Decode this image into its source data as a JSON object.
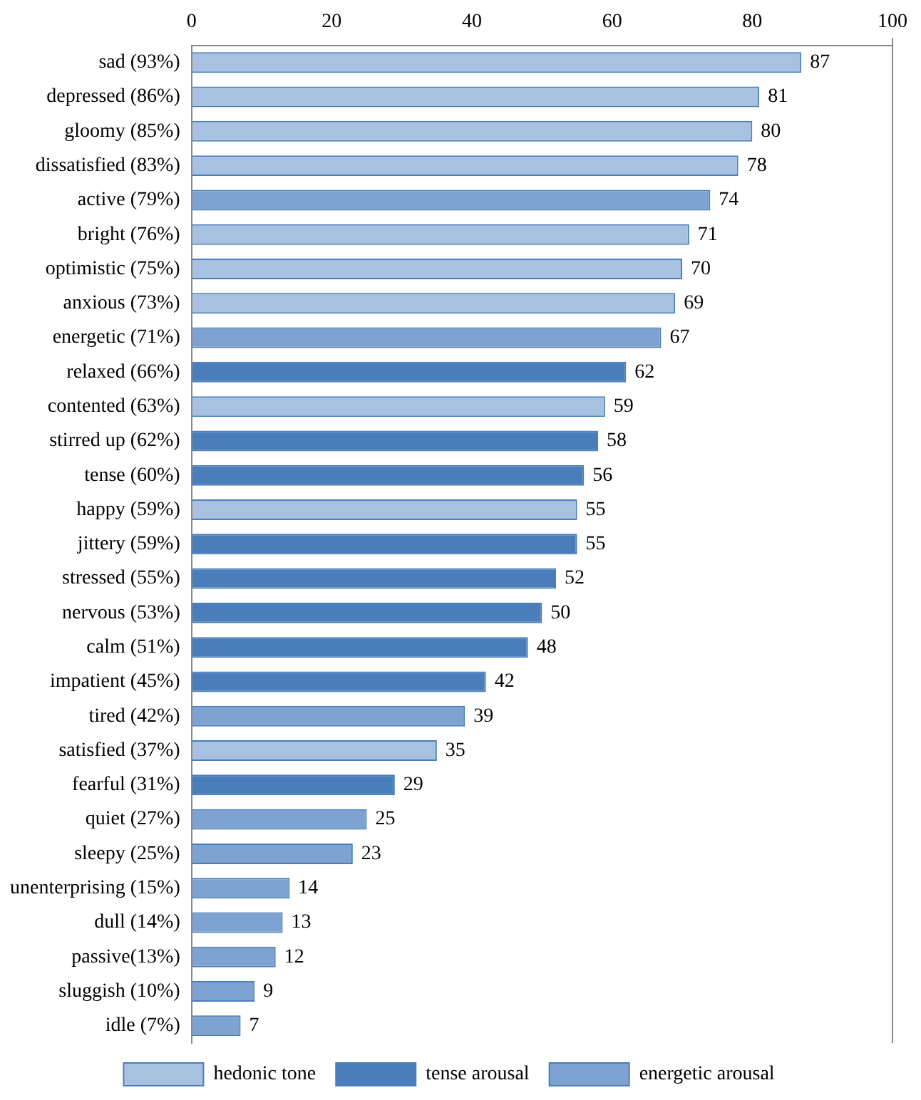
{
  "chart_data": {
    "type": "bar",
    "orientation": "horizontal",
    "categories": [
      "sad (93%)",
      "depressed (86%)",
      "gloomy (85%)",
      "dissatisfied (83%)",
      "active (79%)",
      "bright (76%)",
      "optimistic (75%)",
      "anxious (73%)",
      "energetic (71%)",
      "relaxed (66%)",
      "contented (63%)",
      "stirred up (62%)",
      "tense (60%)",
      "happy (59%)",
      "jittery (59%)",
      "stressed (55%)",
      "nervous (53%)",
      "calm (51%)",
      "impatient (45%)",
      "tired (42%)",
      "satisfied (37%)",
      "fearful (31%)",
      "quiet (27%)",
      "sleepy (25%)",
      "unenterprising (15%)",
      "dull (14%)",
      "passive(13%)",
      "sluggish (10%)",
      "idle (7%)"
    ],
    "series": [
      {
        "name": "hedonic tone",
        "color": "#a9c1e0",
        "values": [
          87,
          81,
          80,
          78,
          null,
          71,
          70,
          69,
          null,
          null,
          59,
          null,
          null,
          55,
          null,
          null,
          null,
          null,
          null,
          null,
          35,
          null,
          null,
          null,
          null,
          null,
          null,
          null,
          null
        ]
      },
      {
        "name": "tense arousal",
        "color": "#4a7ebb",
        "values": [
          null,
          null,
          null,
          null,
          null,
          null,
          null,
          null,
          null,
          62,
          null,
          58,
          56,
          null,
          55,
          52,
          50,
          48,
          42,
          null,
          null,
          29,
          null,
          null,
          null,
          null,
          null,
          null,
          null
        ]
      },
      {
        "name": "energetic arousal",
        "color": "#7fa3d1",
        "values": [
          null,
          null,
          null,
          null,
          74,
          null,
          null,
          null,
          67,
          null,
          null,
          null,
          null,
          null,
          null,
          null,
          null,
          null,
          null,
          39,
          null,
          null,
          25,
          23,
          14,
          13,
          12,
          9,
          7
        ]
      }
    ],
    "xlim": [
      0,
      100
    ],
    "xticks": [
      0,
      20,
      40,
      60,
      80,
      100
    ],
    "data_labels": true,
    "grid": false,
    "legend": "bottom"
  }
}
